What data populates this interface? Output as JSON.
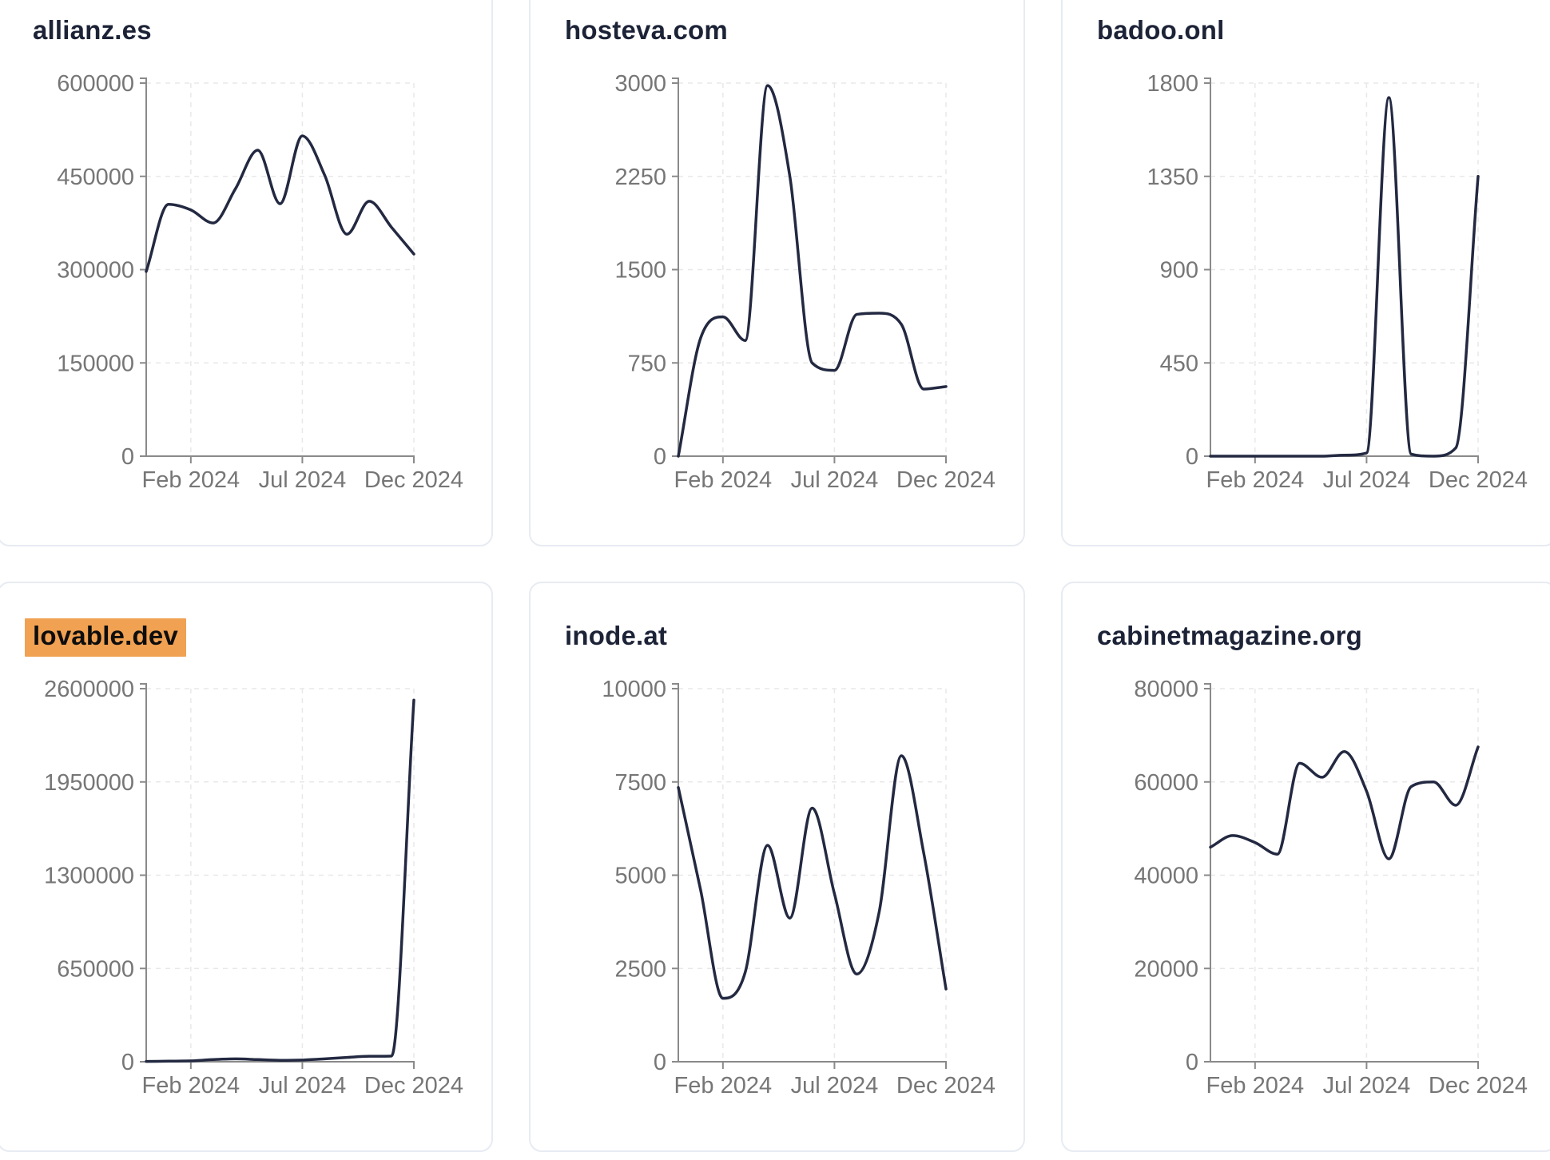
{
  "theme": {
    "line_color": "#232941",
    "title_color": "#1d2337",
    "highlight_color": "#f0a152",
    "axis_color": "#8a8a8a",
    "tick_label_color": "#767676",
    "grid_color": "#e8e8e8",
    "card_border_color": "#e7ebf2",
    "card_background": "#ffffff"
  },
  "axis": {
    "xtick_labels": [
      "Feb 2024",
      "Jul 2024",
      "Dec 2024"
    ],
    "xtick_indices": [
      2,
      7,
      12
    ]
  },
  "chart_data": [
    {
      "type": "line",
      "title": "allianz.es",
      "highlighted": false,
      "x": [
        "Dec 2023",
        "Jan 2024",
        "Feb 2024",
        "Mar 2024",
        "Apr 2024",
        "May 2024",
        "Jun 2024",
        "Jul 2024",
        "Aug 2024",
        "Sep 2024",
        "Oct 2024",
        "Nov 2024",
        "Dec 2024"
      ],
      "values": [
        297000,
        405000,
        396000,
        375000,
        430000,
        492000,
        406000,
        515000,
        452000,
        357000,
        410000,
        368000,
        325000
      ],
      "ylim": [
        0,
        600000
      ],
      "yticks": [
        0,
        150000,
        300000,
        450000,
        600000
      ],
      "xlabel": "",
      "ylabel": "",
      "grid": true,
      "legend": "none"
    },
    {
      "type": "line",
      "title": "hosteva.com",
      "highlighted": false,
      "x": [
        "Dec 2023",
        "Jan 2024",
        "Feb 2024",
        "Mar 2024",
        "Apr 2024",
        "May 2024",
        "Jun 2024",
        "Jul 2024",
        "Aug 2024",
        "Sep 2024",
        "Oct 2024",
        "Nov 2024",
        "Dec 2024"
      ],
      "values": [
        0,
        950,
        1120,
        930,
        2980,
        2250,
        750,
        690,
        1140,
        1150,
        1060,
        540,
        560
      ],
      "ylim": [
        0,
        3000
      ],
      "yticks": [
        0,
        750,
        1500,
        2250,
        3000
      ],
      "xlabel": "",
      "ylabel": "",
      "grid": true,
      "legend": "none"
    },
    {
      "type": "line",
      "title": "badoo.onl",
      "highlighted": false,
      "x": [
        "Dec 2023",
        "Jan 2024",
        "Feb 2024",
        "Mar 2024",
        "Apr 2024",
        "May 2024",
        "Jun 2024",
        "Jul 2024",
        "Aug 2024",
        "Sep 2024",
        "Oct 2024",
        "Nov 2024",
        "Dec 2024"
      ],
      "values": [
        0,
        0,
        0,
        0,
        0,
        0,
        5,
        15,
        1730,
        10,
        0,
        40,
        1350
      ],
      "ylim": [
        0,
        1800
      ],
      "yticks": [
        0,
        450,
        900,
        1350,
        1800
      ],
      "xlabel": "",
      "ylabel": "",
      "grid": true,
      "legend": "none"
    },
    {
      "type": "line",
      "title": "lovable.dev",
      "highlighted": true,
      "x": [
        "Dec 2023",
        "Jan 2024",
        "Feb 2024",
        "Mar 2024",
        "Apr 2024",
        "May 2024",
        "Jun 2024",
        "Jul 2024",
        "Aug 2024",
        "Sep 2024",
        "Oct 2024",
        "Nov 2024",
        "Dec 2024"
      ],
      "values": [
        2000,
        4000,
        6000,
        15000,
        20000,
        15000,
        10000,
        12000,
        20000,
        30000,
        38000,
        40000,
        2520000
      ],
      "ylim": [
        0,
        2600000
      ],
      "yticks": [
        0,
        650000,
        1300000,
        1950000,
        2600000
      ],
      "xlabel": "",
      "ylabel": "",
      "grid": true,
      "legend": "none"
    },
    {
      "type": "line",
      "title": "inode.at",
      "highlighted": false,
      "x": [
        "Dec 2023",
        "Jan 2024",
        "Feb 2024",
        "Mar 2024",
        "Apr 2024",
        "May 2024",
        "Jun 2024",
        "Jul 2024",
        "Aug 2024",
        "Sep 2024",
        "Oct 2024",
        "Nov 2024",
        "Dec 2024"
      ],
      "values": [
        7350,
        4600,
        1700,
        2400,
        5800,
        3850,
        6800,
        4500,
        2350,
        4000,
        8200,
        5600,
        1950
      ],
      "ylim": [
        0,
        10000
      ],
      "yticks": [
        0,
        2500,
        5000,
        7500,
        10000
      ],
      "xlabel": "",
      "ylabel": "",
      "grid": true,
      "legend": "none"
    },
    {
      "type": "line",
      "title": "cabinetmagazine.org",
      "highlighted": false,
      "x": [
        "Dec 2023",
        "Jan 2024",
        "Feb 2024",
        "Mar 2024",
        "Apr 2024",
        "May 2024",
        "Jun 2024",
        "Jul 2024",
        "Aug 2024",
        "Sep 2024",
        "Oct 2024",
        "Nov 2024",
        "Dec 2024"
      ],
      "values": [
        46000,
        48500,
        47000,
        44500,
        64000,
        61000,
        66500,
        58000,
        43500,
        59000,
        60000,
        55000,
        67500
      ],
      "ylim": [
        0,
        80000
      ],
      "yticks": [
        0,
        20000,
        40000,
        60000,
        80000
      ],
      "xlabel": "",
      "ylabel": "",
      "grid": true,
      "legend": "none"
    }
  ]
}
